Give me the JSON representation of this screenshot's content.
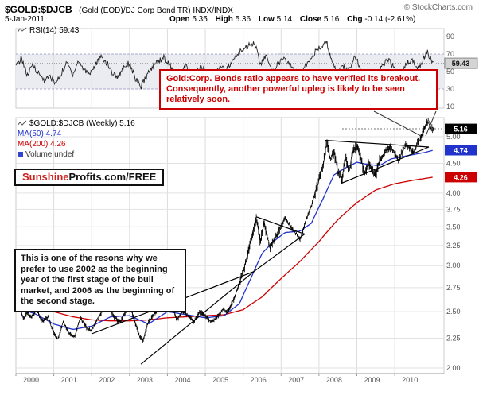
{
  "header": {
    "symbol": "$GOLD:$DJCB",
    "description": "(Gold (EOD)/DJ Corp Bond TR) INDX/INDX",
    "source": "© StockCharts.com",
    "date": "5-Jan-2011",
    "quote": {
      "items": [
        {
          "label": "Open",
          "value": "5.35"
        },
        {
          "label": "High",
          "value": "5.36"
        },
        {
          "label": "Low",
          "value": "5.14"
        },
        {
          "label": "Close",
          "value": "5.16"
        },
        {
          "label": "Chg",
          "value": "-0.14 (-2.61%)"
        }
      ]
    }
  },
  "rsi_panel": {
    "legend": "RSI(14) 59.43",
    "last_value": 59.43
  },
  "main_panel": {
    "legend_price": "$GOLD:$DJCB (Weekly) 5.16",
    "legend_ma50": "MA(50) 4.74",
    "legend_ma200": "MA(200) 4.26",
    "legend_volume": "Volume undef",
    "last_price": 5.16,
    "ma50_value": 4.74,
    "ma200_value": 4.26,
    "accent_ma50_color": "#2233cc",
    "accent_ma200_color": "#cc0000"
  },
  "annotations": {
    "breakout_note": "Gold:Corp. Bonds ratio appears to have verified its breakout. Consequently, another powerful upleg is likely to be seen relatively soon.",
    "logo_red": "Sunshine",
    "logo_black": "Profits.com/FREE",
    "stage_note": "This is one of the resons why we prefer to use 2002 as the beginning year of the first stage of the bull market, and 2006 as the beginning of the second stage."
  },
  "x_axis": [
    "2000",
    "2001",
    "2002",
    "2003",
    "2004",
    "2005",
    "2006",
    "2007",
    "2008",
    "2009",
    "2010"
  ],
  "chart_data": {
    "type": "line",
    "title": "$GOLD:$DJCB (Gold (EOD)/DJ Corp Bond TR) Weekly with RSI(14), MA(50), MA(200)",
    "x_range": [
      2000,
      2011.3
    ],
    "note": "points are [year, value] anchors read off the chart; weekly wiggle interpolated",
    "panels": [
      {
        "id": "rsi",
        "ylim": [
          0,
          100
        ],
        "scale_ticks": [
          90,
          70,
          50,
          30,
          10
        ],
        "band": [
          30,
          70
        ],
        "last_value": 59.43
      },
      {
        "id": "price",
        "scale": "log",
        "ylim": [
          1.95,
          5.45
        ],
        "scale_ticks": [
          5.0,
          4.5,
          4.0,
          3.75,
          3.5,
          3.25,
          3.0,
          2.75,
          2.5,
          2.25,
          2.0
        ],
        "last_value": 5.16
      }
    ],
    "series": [
      {
        "name": "$GOLD:$DJCB",
        "color": "#000000",
        "panel": "price",
        "points": [
          [
            2000.0,
            2.5
          ],
          [
            2000.1,
            2.55
          ],
          [
            2000.2,
            2.42
          ],
          [
            2000.3,
            2.5
          ],
          [
            2000.4,
            2.44
          ],
          [
            2000.55,
            2.52
          ],
          [
            2000.7,
            2.4
          ],
          [
            2000.85,
            2.45
          ],
          [
            2001.0,
            2.3
          ],
          [
            2001.1,
            2.24
          ],
          [
            2001.25,
            2.4
          ],
          [
            2001.4,
            2.3
          ],
          [
            2001.55,
            2.26
          ],
          [
            2001.7,
            2.44
          ],
          [
            2001.85,
            2.35
          ],
          [
            2002.0,
            2.32
          ],
          [
            2002.15,
            2.42
          ],
          [
            2002.3,
            2.52
          ],
          [
            2002.45,
            2.56
          ],
          [
            2002.6,
            2.44
          ],
          [
            2002.75,
            2.4
          ],
          [
            2002.9,
            2.5
          ],
          [
            2003.0,
            2.56
          ],
          [
            2003.1,
            2.45
          ],
          [
            2003.25,
            2.28
          ],
          [
            2003.35,
            2.22
          ],
          [
            2003.5,
            2.4
          ],
          [
            2003.65,
            2.48
          ],
          [
            2003.8,
            2.52
          ],
          [
            2003.95,
            2.6
          ],
          [
            2004.1,
            2.56
          ],
          [
            2004.25,
            2.42
          ],
          [
            2004.4,
            2.5
          ],
          [
            2004.55,
            2.46
          ],
          [
            2004.7,
            2.4
          ],
          [
            2004.85,
            2.5
          ],
          [
            2005.0,
            2.46
          ],
          [
            2005.15,
            2.4
          ],
          [
            2005.3,
            2.44
          ],
          [
            2005.45,
            2.52
          ],
          [
            2005.6,
            2.5
          ],
          [
            2005.75,
            2.62
          ],
          [
            2005.9,
            2.8
          ],
          [
            2006.05,
            3.0
          ],
          [
            2006.2,
            3.3
          ],
          [
            2006.35,
            3.62
          ],
          [
            2006.45,
            3.3
          ],
          [
            2006.55,
            3.55
          ],
          [
            2006.7,
            3.22
          ],
          [
            2006.85,
            3.35
          ],
          [
            2007.0,
            3.5
          ],
          [
            2007.1,
            3.62
          ],
          [
            2007.25,
            3.5
          ],
          [
            2007.4,
            3.4
          ],
          [
            2007.5,
            3.32
          ],
          [
            2007.65,
            3.58
          ],
          [
            2007.8,
            3.8
          ],
          [
            2007.95,
            4.1
          ],
          [
            2008.1,
            4.45
          ],
          [
            2008.2,
            4.88
          ],
          [
            2008.3,
            4.6
          ],
          [
            2008.4,
            4.7
          ],
          [
            2008.5,
            4.35
          ],
          [
            2008.6,
            4.2
          ],
          [
            2008.7,
            4.62
          ],
          [
            2008.8,
            4.35
          ],
          [
            2008.9,
            4.72
          ],
          [
            2009.0,
            4.82
          ],
          [
            2009.1,
            4.6
          ],
          [
            2009.2,
            4.3
          ],
          [
            2009.3,
            4.48
          ],
          [
            2009.4,
            4.38
          ],
          [
            2009.5,
            4.3
          ],
          [
            2009.6,
            4.55
          ],
          [
            2009.7,
            4.65
          ],
          [
            2009.8,
            4.75
          ],
          [
            2009.9,
            4.8
          ],
          [
            2010.0,
            4.68
          ],
          [
            2010.1,
            4.55
          ],
          [
            2010.2,
            4.72
          ],
          [
            2010.3,
            4.85
          ],
          [
            2010.4,
            4.78
          ],
          [
            2010.5,
            4.7
          ],
          [
            2010.6,
            4.88
          ],
          [
            2010.7,
            5.0
          ],
          [
            2010.8,
            5.2
          ],
          [
            2010.88,
            5.34
          ],
          [
            2010.95,
            5.18
          ],
          [
            2011.02,
            5.16
          ]
        ]
      },
      {
        "name": "MA(50)",
        "color": "#2233cc",
        "panel": "price",
        "points": [
          [
            2000.0,
            2.54
          ],
          [
            2000.5,
            2.48
          ],
          [
            2001.0,
            2.38
          ],
          [
            2001.5,
            2.33
          ],
          [
            2002.0,
            2.36
          ],
          [
            2002.5,
            2.45
          ],
          [
            2003.0,
            2.46
          ],
          [
            2003.5,
            2.38
          ],
          [
            2004.0,
            2.5
          ],
          [
            2004.5,
            2.47
          ],
          [
            2005.0,
            2.44
          ],
          [
            2005.5,
            2.46
          ],
          [
            2005.9,
            2.58
          ],
          [
            2006.2,
            2.85
          ],
          [
            2006.5,
            3.15
          ],
          [
            2006.8,
            3.3
          ],
          [
            2007.1,
            3.42
          ],
          [
            2007.5,
            3.44
          ],
          [
            2007.8,
            3.55
          ],
          [
            2008.1,
            3.9
          ],
          [
            2008.4,
            4.3
          ],
          [
            2008.7,
            4.42
          ],
          [
            2009.0,
            4.52
          ],
          [
            2009.3,
            4.48
          ],
          [
            2009.6,
            4.46
          ],
          [
            2009.9,
            4.58
          ],
          [
            2010.2,
            4.62
          ],
          [
            2010.5,
            4.66
          ],
          [
            2010.8,
            4.7
          ],
          [
            2011.02,
            4.74
          ]
        ]
      },
      {
        "name": "MA(200)",
        "color": "#cc0000",
        "panel": "price",
        "points": [
          [
            2000.0,
            2.6
          ],
          [
            2000.5,
            2.56
          ],
          [
            2001.0,
            2.5
          ],
          [
            2001.5,
            2.45
          ],
          [
            2002.0,
            2.42
          ],
          [
            2002.5,
            2.41
          ],
          [
            2003.0,
            2.41
          ],
          [
            2003.5,
            2.42
          ],
          [
            2004.0,
            2.44
          ],
          [
            2004.5,
            2.45
          ],
          [
            2005.0,
            2.46
          ],
          [
            2005.5,
            2.47
          ],
          [
            2006.0,
            2.52
          ],
          [
            2006.5,
            2.65
          ],
          [
            2007.0,
            2.85
          ],
          [
            2007.5,
            3.05
          ],
          [
            2008.0,
            3.3
          ],
          [
            2008.5,
            3.6
          ],
          [
            2009.0,
            3.85
          ],
          [
            2009.5,
            4.05
          ],
          [
            2010.0,
            4.15
          ],
          [
            2010.5,
            4.21
          ],
          [
            2011.02,
            4.26
          ]
        ]
      },
      {
        "name": "RSI(14)",
        "color": "#222222",
        "panel": "rsi",
        "points": [
          [
            2000.0,
            55
          ],
          [
            2000.15,
            66
          ],
          [
            2000.3,
            45
          ],
          [
            2000.45,
            58
          ],
          [
            2000.6,
            48
          ],
          [
            2000.75,
            40
          ],
          [
            2000.9,
            44
          ],
          [
            2001.05,
            36
          ],
          [
            2001.2,
            48
          ],
          [
            2001.35,
            60
          ],
          [
            2001.5,
            47
          ],
          [
            2001.65,
            62
          ],
          [
            2001.8,
            52
          ],
          [
            2001.95,
            48
          ],
          [
            2002.1,
            58
          ],
          [
            2002.25,
            66
          ],
          [
            2002.4,
            60
          ],
          [
            2002.55,
            48
          ],
          [
            2002.7,
            44
          ],
          [
            2002.85,
            56
          ],
          [
            2003.0,
            60
          ],
          [
            2003.15,
            42
          ],
          [
            2003.3,
            32
          ],
          [
            2003.45,
            45
          ],
          [
            2003.6,
            55
          ],
          [
            2003.75,
            62
          ],
          [
            2003.9,
            66
          ],
          [
            2004.05,
            58
          ],
          [
            2004.2,
            46
          ],
          [
            2004.35,
            50
          ],
          [
            2004.5,
            56
          ],
          [
            2004.65,
            42
          ],
          [
            2004.8,
            52
          ],
          [
            2004.95,
            55
          ],
          [
            2005.1,
            44
          ],
          [
            2005.25,
            48
          ],
          [
            2005.4,
            56
          ],
          [
            2005.55,
            52
          ],
          [
            2005.7,
            60
          ],
          [
            2005.85,
            70
          ],
          [
            2006.0,
            76
          ],
          [
            2006.15,
            80
          ],
          [
            2006.3,
            84
          ],
          [
            2006.45,
            58
          ],
          [
            2006.6,
            68
          ],
          [
            2006.75,
            50
          ],
          [
            2006.9,
            58
          ],
          [
            2007.05,
            64
          ],
          [
            2007.2,
            60
          ],
          [
            2007.35,
            52
          ],
          [
            2007.5,
            46
          ],
          [
            2007.65,
            58
          ],
          [
            2007.8,
            68
          ],
          [
            2007.95,
            74
          ],
          [
            2008.1,
            80
          ],
          [
            2008.2,
            84
          ],
          [
            2008.35,
            58
          ],
          [
            2008.5,
            48
          ],
          [
            2008.65,
            56
          ],
          [
            2008.8,
            52
          ],
          [
            2008.95,
            68
          ],
          [
            2009.1,
            52
          ],
          [
            2009.25,
            40
          ],
          [
            2009.4,
            50
          ],
          [
            2009.55,
            46
          ],
          [
            2009.7,
            58
          ],
          [
            2009.85,
            64
          ],
          [
            2010.0,
            52
          ],
          [
            2010.15,
            44
          ],
          [
            2010.3,
            58
          ],
          [
            2010.45,
            64
          ],
          [
            2010.6,
            52
          ],
          [
            2010.75,
            64
          ],
          [
            2010.85,
            74
          ],
          [
            2010.95,
            64
          ],
          [
            2011.02,
            59.43
          ]
        ]
      }
    ],
    "trendlines": [
      {
        "name": "wedge-upper-2002-2006",
        "points": [
          [
            2002.0,
            2.29
          ],
          [
            2006.28,
            2.93
          ]
        ]
      },
      {
        "name": "wedge-lower-2003-2006",
        "points": [
          [
            2003.3,
            2.03
          ],
          [
            2006.28,
            2.93
          ]
        ]
      },
      {
        "name": "triangle-upper-2006-2007",
        "points": [
          [
            2006.35,
            3.64
          ],
          [
            2007.62,
            3.4
          ]
        ]
      },
      {
        "name": "triangle-lower-2006-2007",
        "points": [
          [
            2006.28,
            2.93
          ],
          [
            2007.62,
            3.4
          ]
        ]
      },
      {
        "name": "big-triangle-upper-2008-2010",
        "points": [
          [
            2008.15,
            4.93
          ],
          [
            2010.9,
            4.8
          ]
        ]
      },
      {
        "name": "big-triangle-lower-2008-2010",
        "points": [
          [
            2008.6,
            4.16
          ],
          [
            2010.9,
            4.8
          ]
        ]
      }
    ]
  }
}
